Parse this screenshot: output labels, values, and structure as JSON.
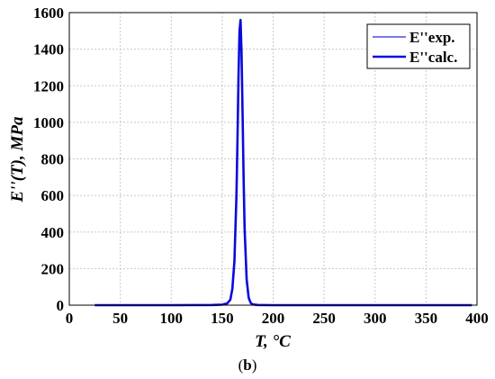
{
  "chart_data": {
    "type": "line",
    "xlabel": "T, °C",
    "ylabel": "E''(T), MPa",
    "xlim": [
      0,
      400
    ],
    "ylim": [
      0,
      1600
    ],
    "xticks": [
      0,
      50,
      100,
      150,
      200,
      250,
      300,
      350,
      400
    ],
    "yticks": [
      0,
      200,
      400,
      600,
      800,
      1000,
      1200,
      1400,
      1600
    ],
    "grid": true,
    "legend_position": "top-right",
    "series": [
      {
        "name": "E''exp.",
        "color": "#2b2bd6",
        "style": "thin",
        "x": [
          25,
          100,
          140,
          150,
          155,
          158,
          160,
          162,
          164,
          165,
          166,
          167,
          168,
          169,
          170,
          171,
          172,
          174,
          176,
          178,
          180,
          185,
          200,
          300,
          395
        ],
        "y": [
          0,
          0,
          1,
          3,
          10,
          30,
          90,
          240,
          600,
          900,
          1250,
          1500,
          1560,
          1380,
          1050,
          700,
          420,
          140,
          40,
          12,
          4,
          1,
          0,
          0,
          0
        ]
      },
      {
        "name": "E''calc.",
        "color": "#0a0adc",
        "style": "thick",
        "x": [
          25,
          100,
          140,
          150,
          155,
          158,
          160,
          162,
          164,
          165,
          166,
          167,
          168,
          169,
          170,
          171,
          172,
          174,
          176,
          178,
          180,
          185,
          200,
          300,
          395
        ],
        "y": [
          0,
          0,
          1,
          3,
          10,
          30,
          90,
          240,
          600,
          900,
          1250,
          1500,
          1560,
          1380,
          1050,
          700,
          420,
          140,
          40,
          12,
          4,
          1,
          0,
          0,
          0
        ]
      }
    ],
    "caption_prefix": "(",
    "caption_letter": "b",
    "caption_suffix": ")"
  }
}
